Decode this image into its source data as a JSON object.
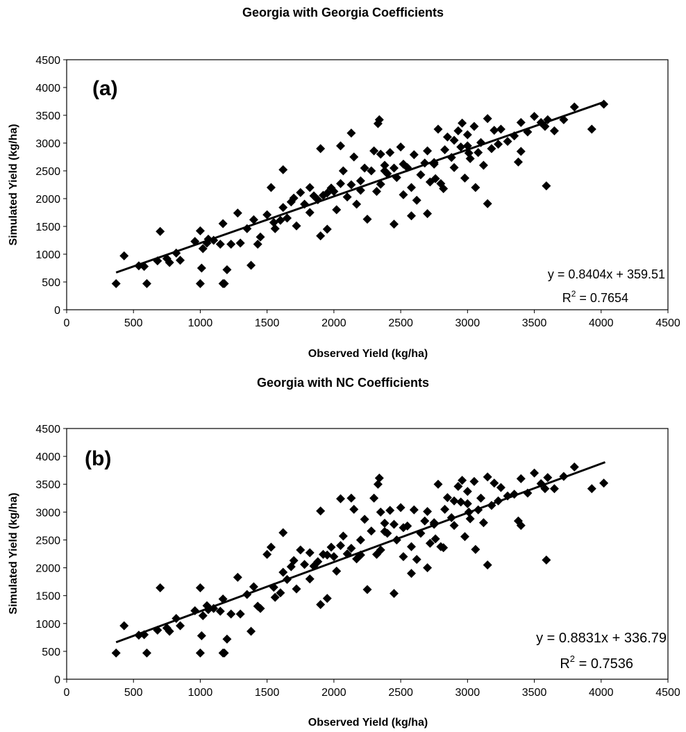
{
  "chart_data": [
    {
      "type": "scatter",
      "title": "Georgia with Georgia Coefficients",
      "panel_label": "(a)",
      "xlabel": "Observed Yield (kg/ha)",
      "ylabel": "Simulated Yield (kg/ha)",
      "xlim": [
        0,
        4500
      ],
      "ylim": [
        0,
        4500
      ],
      "xticks": [
        "0",
        "500",
        "1000",
        "1500",
        "2000",
        "2500",
        "3000",
        "3500",
        "4000",
        "4500"
      ],
      "yticks": [
        "0",
        "500",
        "1000",
        "1500",
        "2000",
        "2500",
        "3000",
        "3500",
        "4000",
        "4500"
      ],
      "grid": false,
      "equation": "y = 0.8404x + 359.51",
      "r2_prefix": "R",
      "r2_sup": "2",
      "r2_value": " = 0.7654",
      "trendline": {
        "slope": 0.8404,
        "intercept": 359.51,
        "x_range": [
          370,
          4030
        ]
      },
      "series": [
        {
          "marker": "diamond",
          "x": [
            370,
            430,
            540,
            580,
            600,
            680,
            700,
            750,
            770,
            820,
            850,
            960,
            1000,
            1000,
            1010,
            1020,
            1050,
            1060,
            1100,
            1150,
            1170,
            1180,
            1200,
            1230,
            1280,
            1300,
            1350,
            1380,
            1400,
            1430,
            1450,
            1500,
            1530,
            1560,
            1600,
            1620,
            1650,
            1680,
            1700,
            1720,
            1750,
            1780,
            1820,
            1850,
            1880,
            1900,
            1920,
            1950,
            1980,
            2000,
            2020,
            2050,
            2070,
            2100,
            2130,
            2150,
            2170,
            2200,
            2230,
            2250,
            2280,
            2300,
            2320,
            2340,
            2350,
            2380,
            2400,
            2420,
            2450,
            2470,
            2500,
            2520,
            2550,
            2580,
            2600,
            2620,
            2650,
            2680,
            2700,
            2720,
            2750,
            2780,
            2800,
            2830,
            2850,
            2880,
            2900,
            2930,
            2950,
            2980,
            3000,
            3020,
            3050,
            3080,
            3100,
            3120,
            3150,
            3180,
            3200,
            3230,
            3250,
            3300,
            3350,
            3380,
            3400,
            3450,
            3500,
            3550,
            3580,
            3600,
            3650,
            3720,
            3800,
            3930,
            4020,
            1620,
            1900,
            2050,
            2130,
            2200,
            2330,
            2450,
            2580,
            2700,
            2820,
            2960,
            3060,
            3150,
            3400,
            3590,
            1820,
            1950,
            2380,
            2520,
            2750,
            2900,
            3010,
            1170,
            1550,
            2350,
            2760,
            3000
          ],
          "y": [
            470,
            970,
            790,
            780,
            470,
            880,
            1410,
            920,
            850,
            1020,
            890,
            1230,
            1420,
            470,
            750,
            1100,
            1200,
            1270,
            1250,
            1180,
            1550,
            470,
            720,
            1180,
            1740,
            1200,
            1460,
            800,
            1620,
            1180,
            1310,
            1710,
            2200,
            1460,
            1610,
            1840,
            1650,
            1940,
            2010,
            1510,
            2110,
            1900,
            2200,
            2050,
            1980,
            1330,
            2060,
            1450,
            2190,
            2130,
            1800,
            2270,
            2500,
            2030,
            2250,
            2750,
            1900,
            2320,
            2550,
            1630,
            2500,
            2860,
            2130,
            3420,
            2260,
            2600,
            2450,
            2830,
            1540,
            2380,
            2930,
            2070,
            2560,
            2200,
            2790,
            1970,
            2430,
            2640,
            2860,
            2300,
            2620,
            3250,
            2270,
            2880,
            3110,
            2740,
            2560,
            3220,
            2930,
            2370,
            3150,
            2720,
            3300,
            2830,
            3010,
            2600,
            3440,
            2900,
            3230,
            2980,
            3250,
            3030,
            3130,
            2660,
            3370,
            3200,
            3480,
            3370,
            3300,
            3420,
            3220,
            3420,
            3650,
            3250,
            3700,
            2520,
            2900,
            2950,
            3180,
            2150,
            3350,
            2550,
            1690,
            1730,
            2180,
            3360,
            2200,
            1910,
            2850,
            2230,
            1750,
            2100,
            2500,
            2620,
            2650,
            3050,
            2820,
            470,
            1570,
            2800,
            2360,
            2950
          ]
        }
      ]
    },
    {
      "type": "scatter",
      "title": "Georgia with NC Coefficients",
      "panel_label": "(b)",
      "xlabel": "Observed Yield (kg/ha)",
      "ylabel": "Simulated Yield (kg/ha)",
      "xlim": [
        0,
        4500
      ],
      "ylim": [
        0,
        4500
      ],
      "xticks": [
        "0",
        "500",
        "1000",
        "1500",
        "2000",
        "2500",
        "3000",
        "3500",
        "4000",
        "4500"
      ],
      "yticks": [
        "0",
        "500",
        "1000",
        "1500",
        "2000",
        "2500",
        "3000",
        "3500",
        "4000",
        "4500"
      ],
      "grid": false,
      "equation": "y = 0.8831x + 336.79",
      "r2_prefix": "R",
      "r2_sup": "2",
      "r2_value": " = 0.7536",
      "trendline": {
        "slope": 0.8831,
        "intercept": 336.79,
        "x_range": [
          370,
          4030
        ]
      },
      "series": [
        {
          "marker": "diamond",
          "x": [
            370,
            430,
            540,
            580,
            600,
            680,
            700,
            750,
            770,
            820,
            850,
            960,
            1000,
            1000,
            1010,
            1020,
            1050,
            1060,
            1100,
            1150,
            1170,
            1180,
            1200,
            1230,
            1280,
            1300,
            1350,
            1380,
            1400,
            1430,
            1450,
            1500,
            1530,
            1560,
            1600,
            1620,
            1650,
            1680,
            1700,
            1720,
            1750,
            1780,
            1820,
            1850,
            1880,
            1900,
            1920,
            1950,
            1980,
            2000,
            2020,
            2050,
            2070,
            2100,
            2130,
            2150,
            2170,
            2200,
            2230,
            2250,
            2280,
            2300,
            2320,
            2340,
            2350,
            2380,
            2400,
            2420,
            2450,
            2470,
            2500,
            2520,
            2550,
            2580,
            2600,
            2620,
            2650,
            2680,
            2700,
            2720,
            2750,
            2780,
            2800,
            2830,
            2850,
            2880,
            2900,
            2930,
            2950,
            2980,
            3000,
            3020,
            3050,
            3080,
            3100,
            3120,
            3150,
            3180,
            3200,
            3230,
            3250,
            3300,
            3350,
            3380,
            3400,
            3450,
            3500,
            3550,
            3580,
            3600,
            3650,
            3720,
            3800,
            3930,
            4020,
            1620,
            1900,
            2050,
            2130,
            2200,
            2330,
            2450,
            2580,
            2700,
            2820,
            2960,
            3060,
            3150,
            3400,
            3590,
            1820,
            1950,
            2380,
            2520,
            2750,
            2900,
            3010,
            1170,
            1550,
            2350,
            2760,
            3000
          ],
          "y": [
            470,
            960,
            790,
            800,
            470,
            880,
            1640,
            920,
            860,
            1090,
            960,
            1230,
            1640,
            470,
            780,
            1140,
            1320,
            1250,
            1270,
            1220,
            1440,
            470,
            720,
            1170,
            1830,
            1170,
            1520,
            860,
            1660,
            1310,
            1270,
            2240,
            2370,
            1470,
            1550,
            1920,
            1790,
            2020,
            2130,
            1620,
            2320,
            2060,
            2270,
            2030,
            2110,
            1340,
            2240,
            1450,
            2370,
            2200,
            1940,
            2400,
            2570,
            2250,
            2350,
            3050,
            2160,
            2500,
            2870,
            1610,
            2660,
            3250,
            2240,
            3610,
            2320,
            2800,
            2620,
            3030,
            1540,
            2500,
            3080,
            2200,
            2750,
            2380,
            3040,
            2150,
            2620,
            2840,
            3010,
            2440,
            2810,
            3500,
            2380,
            3050,
            3260,
            2900,
            2760,
            3460,
            3180,
            2560,
            3370,
            2880,
            3550,
            3040,
            3250,
            2810,
            3630,
            3120,
            3520,
            3200,
            3440,
            3290,
            3320,
            2840,
            3600,
            3340,
            3700,
            3510,
            3420,
            3620,
            3420,
            3640,
            3810,
            3420,
            3520,
            2630,
            3020,
            3240,
            3250,
            2230,
            3500,
            2780,
            1900,
            2000,
            2360,
            3570,
            2330,
            2050,
            2760,
            2140,
            1800,
            2230,
            2650,
            2720,
            2780,
            3200,
            3000,
            470,
            1650,
            3000,
            2520,
            3150
          ]
        }
      ]
    }
  ]
}
